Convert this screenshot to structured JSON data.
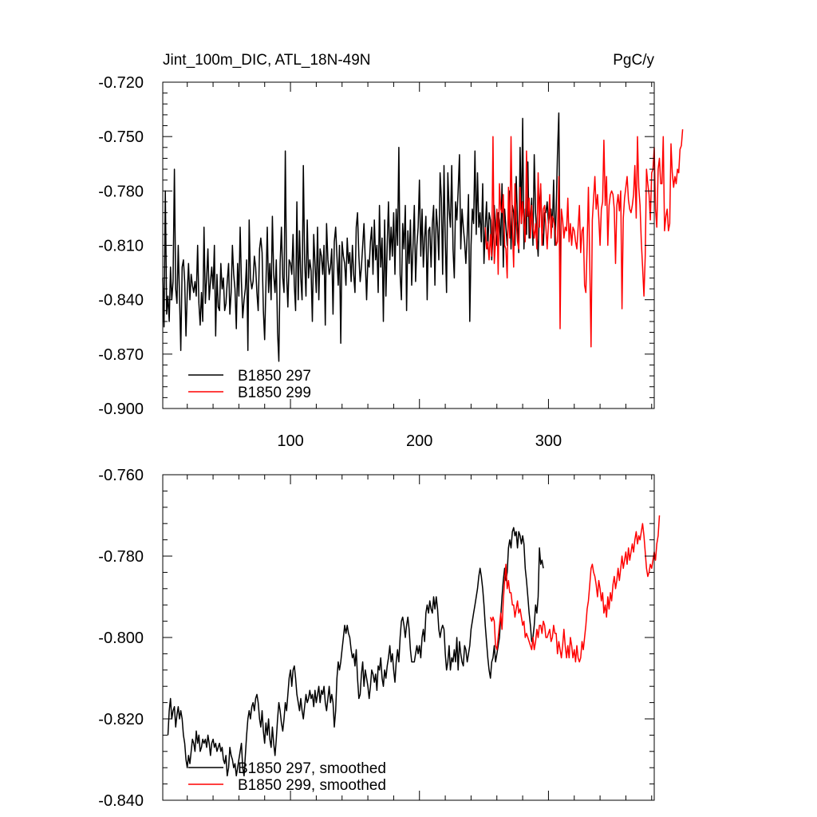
{
  "chart_data": [
    {
      "type": "line",
      "title_left": "Jint_100m_DIC, ATL_18N-49N",
      "title_right": "PgC/y",
      "xlim": [
        1,
        382
      ],
      "ylim": [
        -0.9,
        -0.72
      ],
      "x_ticks": [
        100,
        200,
        300
      ],
      "y_ticks": [
        -0.72,
        -0.75,
        -0.78,
        -0.81,
        -0.84,
        -0.87,
        -0.9
      ],
      "y_tick_labels": [
        "-0.720",
        "-0.750",
        "-0.780",
        "-0.810",
        "-0.840",
        "-0.870",
        "-0.900"
      ],
      "legend": [
        {
          "label": "B1850 297",
          "color": "#000000"
        },
        {
          "label": "B1850 299",
          "color": "#ff0000"
        }
      ],
      "series": [
        {
          "name": "B1850 297",
          "color": "#000000",
          "x_start": 1,
          "values": [
            -0.828,
            -0.855,
            -0.78,
            -0.848,
            -0.838,
            -0.852,
            -0.822,
            -0.84,
            -0.83,
            -0.768,
            -0.834,
            -0.842,
            -0.81,
            -0.838,
            -0.868,
            -0.822,
            -0.818,
            -0.83,
            -0.86,
            -0.836,
            -0.82,
            -0.84,
            -0.826,
            -0.832,
            -0.836,
            -0.83,
            -0.838,
            -0.81,
            -0.842,
            -0.854,
            -0.836,
            -0.852,
            -0.8,
            -0.842,
            -0.828,
            -0.812,
            -0.84,
            -0.83,
            -0.822,
            -0.834,
            -0.81,
            -0.86,
            -0.826,
            -0.844,
            -0.846,
            -0.82,
            -0.834,
            -0.828,
            -0.846,
            -0.842,
            -0.83,
            -0.82,
            -0.848,
            -0.836,
            -0.81,
            -0.826,
            -0.834,
            -0.856,
            -0.82,
            -0.838,
            -0.8,
            -0.83,
            -0.85,
            -0.84,
            -0.834,
            -0.818,
            -0.868,
            -0.796,
            -0.828,
            -0.834,
            -0.83,
            -0.816,
            -0.822,
            -0.836,
            -0.846,
            -0.812,
            -0.806,
            -0.814,
            -0.846,
            -0.862,
            -0.832,
            -0.8,
            -0.836,
            -0.82,
            -0.84,
            -0.794,
            -0.826,
            -0.836,
            -0.818,
            -0.858,
            -0.874,
            -0.82,
            -0.8,
            -0.828,
            -0.836,
            -0.758,
            -0.826,
            -0.844,
            -0.818,
            -0.82,
            -0.826,
            -0.804,
            -0.832,
            -0.846,
            -0.786,
            -0.84,
            -0.802,
            -0.828,
            -0.84,
            -0.766,
            -0.818,
            -0.838,
            -0.796,
            -0.828,
            -0.818,
            -0.824,
            -0.852,
            -0.804,
            -0.82,
            -0.836,
            -0.8,
            -0.84,
            -0.812,
            -0.816,
            -0.826,
            -0.81,
            -0.854,
            -0.798,
            -0.818,
            -0.826,
            -0.822,
            -0.812,
            -0.848,
            -0.808,
            -0.8,
            -0.816,
            -0.832,
            -0.81,
            -0.864,
            -0.808,
            -0.816,
            -0.82,
            -0.832,
            -0.806,
            -0.82,
            -0.814,
            -0.83,
            -0.81,
            -0.826,
            -0.836,
            -0.8,
            -0.792,
            -0.816,
            -0.83,
            -0.822,
            -0.81,
            -0.798,
            -0.818,
            -0.84,
            -0.818,
            -0.822,
            -0.808,
            -0.8,
            -0.826,
            -0.796,
            -0.818,
            -0.81,
            -0.836,
            -0.788,
            -0.822,
            -0.806,
            -0.852,
            -0.796,
            -0.838,
            -0.81,
            -0.786,
            -0.818,
            -0.8,
            -0.816,
            -0.792,
            -0.826,
            -0.79,
            -0.81,
            -0.756,
            -0.826,
            -0.84,
            -0.798,
            -0.812,
            -0.788,
            -0.846,
            -0.802,
            -0.82,
            -0.796,
            -0.832,
            -0.81,
            -0.788,
            -0.83,
            -0.81,
            -0.8,
            -0.774,
            -0.816,
            -0.79,
            -0.822,
            -0.806,
            -0.794,
            -0.84,
            -0.802,
            -0.8,
            -0.822,
            -0.798,
            -0.788,
            -0.832,
            -0.79,
            -0.8,
            -0.818,
            -0.77,
            -0.784,
            -0.826,
            -0.766,
            -0.808,
            -0.836,
            -0.77,
            -0.79,
            -0.8,
            -0.766,
            -0.812,
            -0.828,
            -0.786,
            -0.796,
            -0.78,
            -0.76,
            -0.812,
            -0.79,
            -0.8,
            -0.808,
            -0.82,
            -0.804,
            -0.782,
            -0.852,
            -0.81,
            -0.79,
            -0.798,
            -0.758,
            -0.804,
            -0.77,
            -0.8,
            -0.792,
            -0.808,
            -0.776,
            -0.82,
            -0.8,
            -0.786,
            -0.812,
            -0.792,
            -0.796,
            -0.818,
            -0.804,
            -0.788,
            -0.802,
            -0.81,
            -0.792,
            -0.796,
            -0.81,
            -0.776,
            -0.822,
            -0.79,
            -0.8,
            -0.81,
            -0.796,
            -0.78,
            -0.812,
            -0.788,
            -0.792,
            -0.81,
            -0.772,
            -0.796,
            -0.814,
            -0.756,
            -0.798,
            -0.74,
            -0.812,
            -0.79,
            -0.804,
            -0.764,
            -0.806,
            -0.796,
            -0.784,
            -0.81,
            -0.76,
            -0.792,
            -0.804,
            -0.816,
            -0.788,
            -0.778,
            -0.8,
            -0.81,
            -0.792,
            -0.792,
            -0.786,
            -0.798,
            -0.792,
            -0.79,
            -0.8,
            -0.774,
            -0.81,
            -0.79,
            -0.76,
            -0.737,
            -0.826
          ]
        },
        {
          "name": "B1850 299",
          "color": "#ff0000",
          "x_start": 251,
          "values": [
            -0.8,
            -0.812,
            -0.808,
            -0.818,
            -0.804,
            -0.816,
            -0.75,
            -0.82,
            -0.808,
            -0.79,
            -0.826,
            -0.776,
            -0.79,
            -0.792,
            -0.782,
            -0.81,
            -0.812,
            -0.828,
            -0.778,
            -0.806,
            -0.75,
            -0.8,
            -0.822,
            -0.776,
            -0.796,
            -0.808,
            -0.812,
            -0.778,
            -0.798,
            -0.786,
            -0.798,
            -0.808,
            -0.758,
            -0.794,
            -0.784,
            -0.806,
            -0.788,
            -0.8,
            -0.806,
            -0.798,
            -0.812,
            -0.77,
            -0.8,
            -0.776,
            -0.81,
            -0.79,
            -0.788,
            -0.8,
            -0.812,
            -0.798,
            -0.782,
            -0.806,
            -0.794,
            -0.796,
            -0.8,
            -0.81,
            -0.808,
            -0.772,
            -0.856,
            -0.79,
            -0.796,
            -0.806,
            -0.8,
            -0.802,
            -0.784,
            -0.808,
            -0.798,
            -0.81,
            -0.8,
            -0.802,
            -0.808,
            -0.812,
            -0.8,
            -0.788,
            -0.814,
            -0.802,
            -0.8,
            -0.832,
            -0.836,
            -0.81,
            -0.778,
            -0.82,
            -0.866,
            -0.796,
            -0.784,
            -0.772,
            -0.79,
            -0.782,
            -0.795,
            -0.81,
            -0.79,
            -0.786,
            -0.752,
            -0.788,
            -0.772,
            -0.81,
            -0.788,
            -0.782,
            -0.78,
            -0.782,
            -0.79,
            -0.82,
            -0.788,
            -0.782,
            -0.791,
            -0.78,
            -0.845,
            -0.795,
            -0.784,
            -0.778,
            -0.772,
            -0.785,
            -0.79,
            -0.792,
            -0.788,
            -0.782,
            -0.766,
            -0.795,
            -0.75,
            -0.778,
            -0.788,
            -0.808,
            -0.822,
            -0.838,
            -0.816,
            -0.768,
            -0.776,
            -0.782,
            -0.796,
            -0.77,
            -0.768,
            -0.756,
            -0.79,
            -0.8,
            -0.768,
            -0.762,
            -0.776,
            -0.776,
            -0.75,
            -0.802,
            -0.794,
            -0.79,
            -0.802,
            -0.798,
            -0.754,
            -0.77,
            -0.778,
            -0.772,
            -0.776,
            -0.768,
            -0.77,
            -0.757,
            -0.755,
            -0.746
          ]
        }
      ]
    },
    {
      "type": "line",
      "xlim": [
        1,
        382
      ],
      "ylim": [
        -0.84,
        -0.76
      ],
      "y_ticks": [
        -0.76,
        -0.78,
        -0.8,
        -0.82,
        -0.84
      ],
      "y_tick_labels": [
        "-0.760",
        "-0.780",
        "-0.800",
        "-0.820",
        "-0.840"
      ],
      "legend": [
        {
          "label": "B1850 297, smoothed",
          "color": "#000000"
        },
        {
          "label": "B1850 299, smoothed",
          "color": "#ff0000"
        }
      ],
      "series": [
        {
          "name": "B1850 297, smoothed",
          "color": "#000000",
          "x_start": 5,
          "values": [
            -0.824,
            -0.818,
            -0.815,
            -0.82,
            -0.818,
            -0.817,
            -0.822,
            -0.819,
            -0.817,
            -0.82,
            -0.818,
            -0.82,
            -0.824,
            -0.826,
            -0.83,
            -0.832,
            -0.829,
            -0.831,
            -0.828,
            -0.825,
            -0.826,
            -0.828,
            -0.823,
            -0.826,
            -0.824,
            -0.828,
            -0.827,
            -0.825,
            -0.826,
            -0.825,
            -0.827,
            -0.824,
            -0.826,
            -0.829,
            -0.826,
            -0.825,
            -0.827,
            -0.826,
            -0.828,
            -0.827,
            -0.826,
            -0.828,
            -0.827,
            -0.83,
            -0.831,
            -0.829,
            -0.834,
            -0.832,
            -0.827,
            -0.829,
            -0.83,
            -0.832,
            -0.831,
            -0.834,
            -0.832,
            -0.83,
            -0.828,
            -0.826,
            -0.832,
            -0.834,
            -0.829,
            -0.824,
            -0.82,
            -0.818,
            -0.82,
            -0.817,
            -0.816,
            -0.818,
            -0.815,
            -0.814,
            -0.816,
            -0.82,
            -0.822,
            -0.818,
            -0.823,
            -0.826,
            -0.821,
            -0.824,
            -0.82,
            -0.825,
            -0.827,
            -0.822,
            -0.826,
            -0.829,
            -0.825,
            -0.82,
            -0.816,
            -0.818,
            -0.821,
            -0.823,
            -0.82,
            -0.816,
            -0.818,
            -0.814,
            -0.81,
            -0.808,
            -0.812,
            -0.808,
            -0.807,
            -0.81,
            -0.814,
            -0.816,
            -0.818,
            -0.815,
            -0.818,
            -0.82,
            -0.817,
            -0.814,
            -0.816,
            -0.815,
            -0.813,
            -0.815,
            -0.814,
            -0.817,
            -0.813,
            -0.816,
            -0.814,
            -0.812,
            -0.816,
            -0.813,
            -0.814,
            -0.812,
            -0.816,
            -0.818,
            -0.815,
            -0.812,
            -0.816,
            -0.814,
            -0.816,
            -0.822,
            -0.818,
            -0.81,
            -0.806,
            -0.808,
            -0.806,
            -0.803,
            -0.8,
            -0.797,
            -0.799,
            -0.797,
            -0.799,
            -0.8,
            -0.803,
            -0.805,
            -0.804,
            -0.807,
            -0.803,
            -0.81,
            -0.815,
            -0.814,
            -0.809,
            -0.806,
            -0.812,
            -0.808,
            -0.81,
            -0.812,
            -0.815,
            -0.812,
            -0.808,
            -0.809,
            -0.811,
            -0.809,
            -0.813,
            -0.807,
            -0.808,
            -0.805,
            -0.81,
            -0.812,
            -0.808,
            -0.81,
            -0.807,
            -0.805,
            -0.802,
            -0.806,
            -0.804,
            -0.808,
            -0.811,
            -0.806,
            -0.803,
            -0.806,
            -0.8,
            -0.796,
            -0.795,
            -0.797,
            -0.8,
            -0.797,
            -0.795,
            -0.798,
            -0.803,
            -0.806,
            -0.806,
            -0.806,
            -0.804,
            -0.802,
            -0.804,
            -0.802,
            -0.805,
            -0.8,
            -0.798,
            -0.801,
            -0.794,
            -0.792,
            -0.794,
            -0.791,
            -0.793,
            -0.794,
            -0.79,
            -0.793,
            -0.79,
            -0.793,
            -0.798,
            -0.8,
            -0.798,
            -0.797,
            -0.798,
            -0.804,
            -0.808,
            -0.806,
            -0.802,
            -0.808,
            -0.805,
            -0.806,
            -0.803,
            -0.806,
            -0.8,
            -0.808,
            -0.801,
            -0.804,
            -0.806,
            -0.807,
            -0.802,
            -0.803,
            -0.806,
            -0.804,
            -0.802,
            -0.798,
            -0.796,
            -0.794,
            -0.792,
            -0.79,
            -0.788,
            -0.785,
            -0.783,
            -0.785,
            -0.788,
            -0.792,
            -0.797,
            -0.801,
            -0.805,
            -0.808,
            -0.81,
            -0.806,
            -0.805,
            -0.802,
            -0.806,
            -0.804,
            -0.802,
            -0.8,
            -0.795,
            -0.79,
            -0.786,
            -0.783,
            -0.786,
            -0.784,
            -0.778,
            -0.776,
            -0.778,
            -0.774,
            -0.773,
            -0.775,
            -0.774,
            -0.778,
            -0.774,
            -0.775,
            -0.777,
            -0.775,
            -0.777,
            -0.783,
            -0.786,
            -0.79,
            -0.794,
            -0.797,
            -0.801,
            -0.8,
            -0.797,
            -0.792,
            -0.794,
            -0.79,
            -0.778,
            -0.782,
            -0.781,
            -0.783
          ]
        },
        {
          "name": "B1850 299, smoothed",
          "color": "#ff0000",
          "x_start": 255,
          "values": [
            -0.795,
            -0.796,
            -0.795,
            -0.796,
            -0.802,
            -0.803,
            -0.8,
            -0.797,
            -0.794,
            -0.798,
            -0.791,
            -0.786,
            -0.782,
            -0.788,
            -0.786,
            -0.789,
            -0.789,
            -0.792,
            -0.792,
            -0.795,
            -0.793,
            -0.791,
            -0.794,
            -0.793,
            -0.795,
            -0.797,
            -0.796,
            -0.8,
            -0.799,
            -0.8,
            -0.801,
            -0.802,
            -0.803,
            -0.8,
            -0.803,
            -0.801,
            -0.798,
            -0.8,
            -0.797,
            -0.797,
            -0.799,
            -0.796,
            -0.797,
            -0.8,
            -0.8,
            -0.799,
            -0.798,
            -0.801,
            -0.8,
            -0.797,
            -0.799,
            -0.799,
            -0.804,
            -0.801,
            -0.803,
            -0.805,
            -0.802,
            -0.798,
            -0.802,
            -0.805,
            -0.802,
            -0.805,
            -0.8,
            -0.802,
            -0.805,
            -0.803,
            -0.806,
            -0.802,
            -0.805,
            -0.806,
            -0.805,
            -0.801,
            -0.803,
            -0.8,
            -0.797,
            -0.793,
            -0.791,
            -0.787,
            -0.783,
            -0.782,
            -0.784,
            -0.785,
            -0.787,
            -0.79,
            -0.786,
            -0.788,
            -0.791,
            -0.789,
            -0.794,
            -0.792,
            -0.795,
            -0.79,
            -0.793,
            -0.789,
            -0.791,
            -0.787,
            -0.785,
            -0.788,
            -0.786,
            -0.783,
            -0.786,
            -0.783,
            -0.78,
            -0.783,
            -0.781,
            -0.779,
            -0.782,
            -0.778,
            -0.781,
            -0.779,
            -0.777,
            -0.779,
            -0.776,
            -0.774,
            -0.777,
            -0.775,
            -0.776,
            -0.774,
            -0.772,
            -0.775,
            -0.779,
            -0.783,
            -0.785,
            -0.784,
            -0.782,
            -0.783,
            -0.781,
            -0.779,
            -0.781,
            -0.777,
            -0.775,
            -0.77
          ]
        }
      ]
    }
  ]
}
